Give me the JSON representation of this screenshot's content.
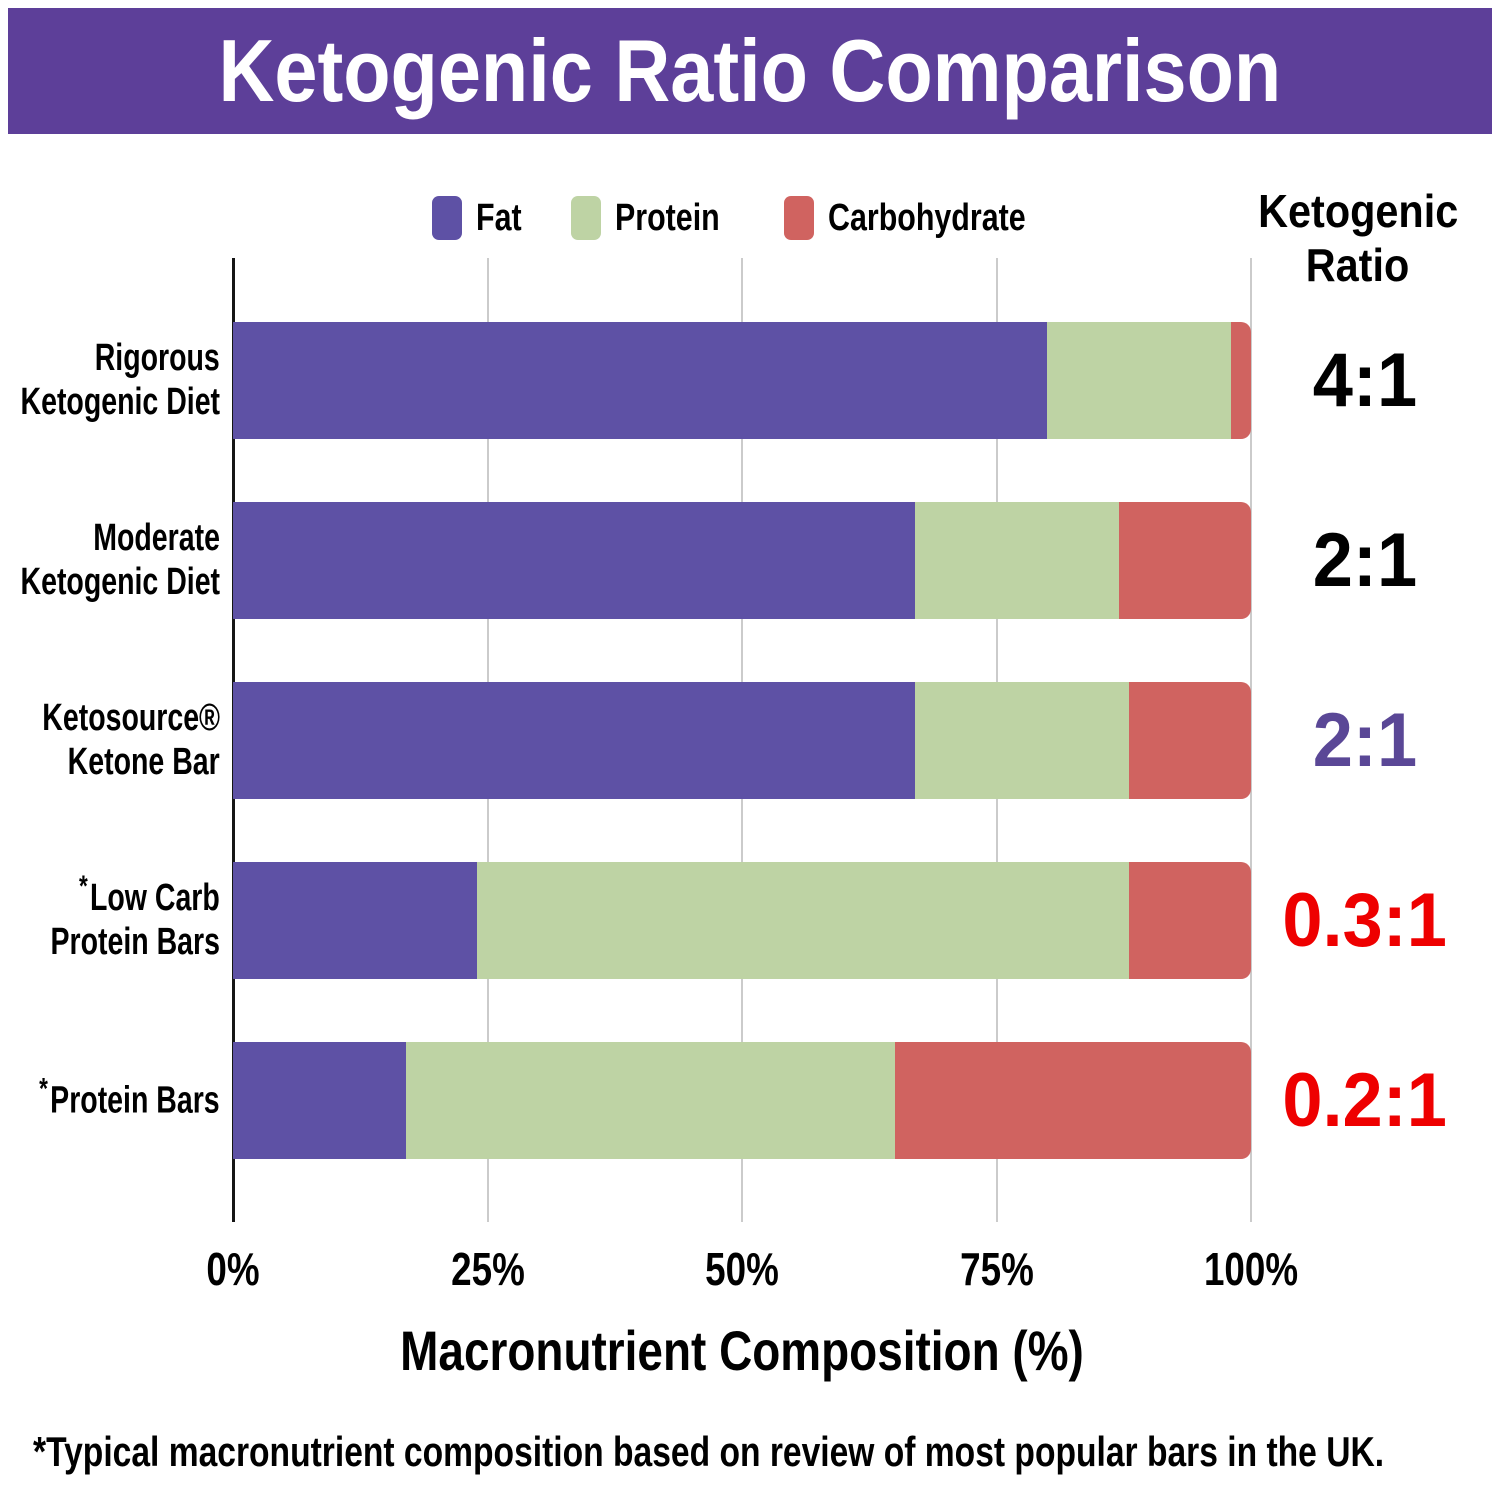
{
  "header": {
    "title": "Ketogenic Ratio Comparison"
  },
  "legend": [
    {
      "label": "Fat",
      "color": "#5e51a5"
    },
    {
      "label": "Protein",
      "color": "#bed3a4"
    },
    {
      "label": "Carbohydrate",
      "color": "#d06360"
    }
  ],
  "ratio_header": {
    "line1": "Ketogenic",
    "line2": "Ratio"
  },
  "footnote": "*Typical macronutrient composition based on review of most popular bars in the UK.",
  "colors": {
    "banner": "#5d3f99",
    "fat": "#5e51a5",
    "protein": "#bed3a4",
    "carbohydrate": "#d06360",
    "ratio_black": "#000000",
    "ratio_purple": "#5a4796",
    "ratio_red": "#ee0000",
    "gridline": "#cbcbcb",
    "axis": "#151515"
  },
  "chart_data": {
    "type": "bar",
    "orientation": "horizontal",
    "stacked": true,
    "title": "Ketogenic Ratio Comparison",
    "xlabel": "Macronutrient Composition (%)",
    "xlim": [
      0,
      100
    ],
    "x_ticks": [
      "0%",
      "25%",
      "50%",
      "75%",
      "100%"
    ],
    "x_tick_values": [
      0,
      25,
      50,
      75,
      100
    ],
    "grid": true,
    "legend_position": "top",
    "asterisk_symbol": "*",
    "categories": [
      "Rigorous Ketogenic Diet",
      "Moderate Ketogenic Diet",
      "Ketosource® Ketone Bar",
      "*Low Carb Protein Bars",
      "*Protein Bars"
    ],
    "series": [
      {
        "name": "Fat",
        "color": "#5e51a5",
        "values": [
          80,
          67,
          67,
          24,
          17
        ]
      },
      {
        "name": "Protein",
        "color": "#bed3a4",
        "values": [
          18,
          20,
          21,
          64,
          48
        ]
      },
      {
        "name": "Carbohydrate",
        "color": "#d06360",
        "values": [
          2,
          13,
          12,
          12,
          35
        ]
      }
    ],
    "ratio_annotations": [
      "4:1",
      "2:1",
      "2:1",
      "0.3:1",
      "0.2:1"
    ],
    "rows": [
      {
        "label_lines": [
          "Rigorous",
          "Ketogenic Diet"
        ],
        "asterisk": false,
        "fat": 80,
        "protein": 18,
        "carbohydrate": 2,
        "ratio": "4:1",
        "ratio_color": "#000000"
      },
      {
        "label_lines": [
          "Moderate",
          "Ketogenic Diet"
        ],
        "asterisk": false,
        "fat": 67,
        "protein": 20,
        "carbohydrate": 13,
        "ratio": "2:1",
        "ratio_color": "#000000"
      },
      {
        "label_lines": [
          "Ketosource®",
          "Ketone Bar"
        ],
        "asterisk": false,
        "fat": 67,
        "protein": 21,
        "carbohydrate": 12,
        "ratio": "2:1",
        "ratio_color": "#5a4796"
      },
      {
        "label_lines": [
          "Low Carb",
          "Protein Bars"
        ],
        "asterisk": true,
        "fat": 24,
        "protein": 64,
        "carbohydrate": 12,
        "ratio": "0.3:1",
        "ratio_color": "#ee0000"
      },
      {
        "label_lines": [
          "Protein Bars"
        ],
        "asterisk": true,
        "fat": 17,
        "protein": 48,
        "carbohydrate": 35,
        "ratio": "0.2:1",
        "ratio_color": "#ee0000"
      }
    ]
  }
}
